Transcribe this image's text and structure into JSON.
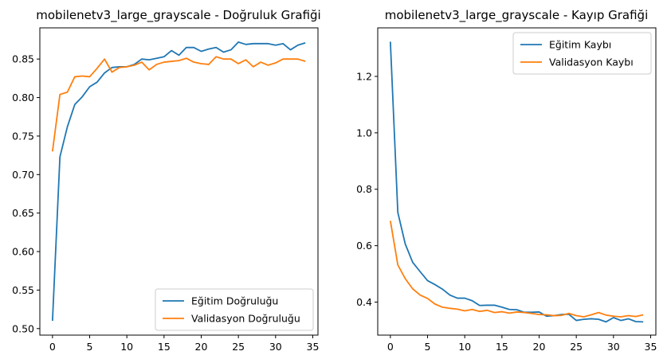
{
  "chart_data": [
    {
      "type": "line",
      "title": "mobilenetv3_large_grayscale - Doğruluk Grafiği",
      "xlabel": "",
      "ylabel": "",
      "xlim": [
        -1.7,
        35.7
      ],
      "ylim": [
        0.4915,
        0.8905
      ],
      "xticks": [
        0,
        5,
        10,
        15,
        20,
        25,
        30,
        35
      ],
      "yticks": [
        0.5,
        0.55,
        0.6,
        0.65,
        0.7,
        0.75,
        0.8,
        0.85
      ],
      "legend_position": "lower right",
      "grid": false,
      "x": [
        0,
        1,
        2,
        3,
        4,
        5,
        6,
        7,
        8,
        9,
        10,
        11,
        12,
        13,
        14,
        15,
        16,
        17,
        18,
        19,
        20,
        21,
        22,
        23,
        24,
        25,
        26,
        27,
        28,
        29,
        30,
        31,
        32,
        33,
        34
      ],
      "series": [
        {
          "name": "Eğitim Doğruluğu",
          "color": "#1f77b4",
          "values": [
            0.51,
            0.723,
            0.762,
            0.791,
            0.801,
            0.814,
            0.82,
            0.832,
            0.839,
            0.84,
            0.84,
            0.843,
            0.85,
            0.849,
            0.851,
            0.853,
            0.861,
            0.855,
            0.865,
            0.865,
            0.86,
            0.863,
            0.865,
            0.859,
            0.862,
            0.872,
            0.869,
            0.87,
            0.87,
            0.87,
            0.868,
            0.87,
            0.862,
            0.868,
            0.871
          ]
        },
        {
          "name": "Validasyon Doğruluğu",
          "color": "#ff7f0e",
          "values": [
            0.73,
            0.804,
            0.807,
            0.827,
            0.828,
            0.827,
            0.838,
            0.85,
            0.833,
            0.839,
            0.84,
            0.842,
            0.846,
            0.836,
            0.843,
            0.846,
            0.847,
            0.848,
            0.851,
            0.846,
            0.844,
            0.843,
            0.853,
            0.85,
            0.85,
            0.844,
            0.849,
            0.84,
            0.846,
            0.842,
            0.845,
            0.85,
            0.85,
            0.85,
            0.847
          ]
        }
      ]
    },
    {
      "type": "line",
      "title": "mobilenetv3_large_grayscale - Kayıp Grafiği",
      "xlabel": "",
      "ylabel": "",
      "xlim": [
        -1.7,
        35.7
      ],
      "ylim": [
        0.283,
        1.372
      ],
      "xticks": [
        0,
        5,
        10,
        15,
        20,
        25,
        30,
        35
      ],
      "yticks": [
        0.4,
        0.6,
        0.8,
        1.0,
        1.2
      ],
      "legend_position": "upper right",
      "grid": false,
      "x": [
        0,
        1,
        2,
        3,
        4,
        5,
        6,
        7,
        8,
        9,
        10,
        11,
        12,
        13,
        14,
        15,
        16,
        17,
        18,
        19,
        20,
        21,
        22,
        23,
        24,
        25,
        26,
        27,
        28,
        29,
        30,
        31,
        32,
        33,
        34
      ],
      "series": [
        {
          "name": "Eğitim Kaybı",
          "color": "#1f77b4",
          "values": [
            1.323,
            0.718,
            0.606,
            0.541,
            0.508,
            0.476,
            0.462,
            0.446,
            0.425,
            0.414,
            0.414,
            0.405,
            0.388,
            0.389,
            0.389,
            0.382,
            0.374,
            0.373,
            0.364,
            0.364,
            0.365,
            0.35,
            0.352,
            0.356,
            0.357,
            0.335,
            0.339,
            0.341,
            0.339,
            0.33,
            0.345,
            0.335,
            0.341,
            0.331,
            0.33
          ]
        },
        {
          "name": "Validasyon Kaybı",
          "color": "#ff7f0e",
          "values": [
            0.688,
            0.532,
            0.483,
            0.447,
            0.425,
            0.413,
            0.393,
            0.382,
            0.378,
            0.375,
            0.369,
            0.374,
            0.367,
            0.371,
            0.363,
            0.366,
            0.361,
            0.365,
            0.363,
            0.36,
            0.356,
            0.355,
            0.352,
            0.353,
            0.36,
            0.352,
            0.348,
            0.355,
            0.363,
            0.354,
            0.35,
            0.348,
            0.352,
            0.349,
            0.355
          ]
        }
      ]
    }
  ]
}
